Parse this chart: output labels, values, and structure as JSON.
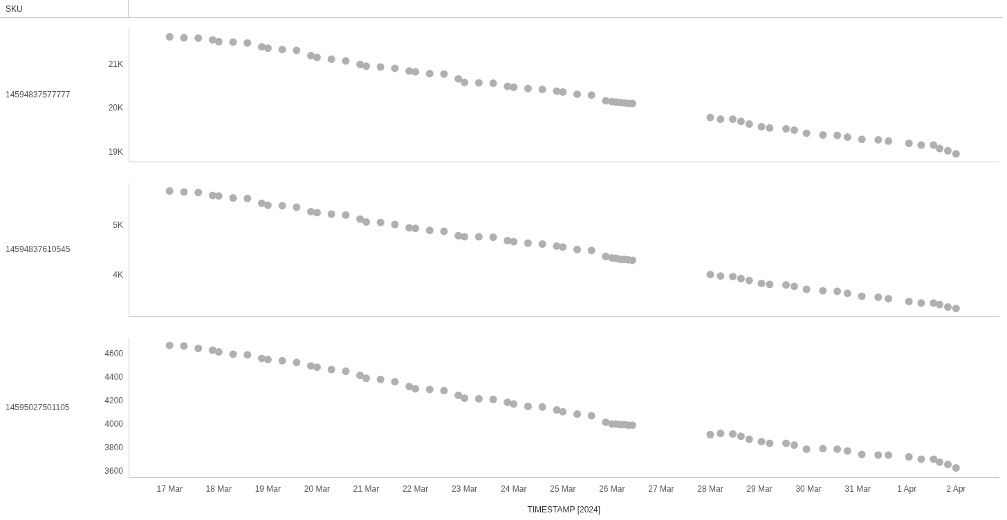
{
  "chart_data": [
    {
      "type": "scatter",
      "annotations": [
        "SKU"
      ],
      "ylabel": "14594837577777",
      "x": [
        "2024-03-17T00:00",
        "2024-03-17T07:00",
        "2024-03-17T14:00",
        "2024-03-17T21:00",
        "2024-03-18T00:00",
        "2024-03-18T07:00",
        "2024-03-18T14:00",
        "2024-03-18T21:00",
        "2024-03-19T00:00",
        "2024-03-19T07:00",
        "2024-03-19T14:00",
        "2024-03-19T21:00",
        "2024-03-20T00:00",
        "2024-03-20T07:00",
        "2024-03-20T14:00",
        "2024-03-20T21:00",
        "2024-03-21T00:00",
        "2024-03-21T07:00",
        "2024-03-21T14:00",
        "2024-03-21T21:00",
        "2024-03-22T00:00",
        "2024-03-22T07:00",
        "2024-03-22T14:00",
        "2024-03-22T21:00",
        "2024-03-23T00:00",
        "2024-03-23T07:00",
        "2024-03-23T14:00",
        "2024-03-23T21:00",
        "2024-03-24T00:00",
        "2024-03-24T07:00",
        "2024-03-24T14:00",
        "2024-03-24T21:00",
        "2024-03-25T00:00",
        "2024-03-25T07:00",
        "2024-03-25T14:00",
        "2024-03-25T21:00",
        "2024-03-26T00:00",
        "2024-03-26T02:00",
        "2024-03-26T04:00",
        "2024-03-26T06:00",
        "2024-03-26T08:00",
        "2024-03-26T10:00",
        "2024-03-28T00:00",
        "2024-03-28T05:00",
        "2024-03-28T11:00",
        "2024-03-28T15:00",
        "2024-03-28T19:00",
        "2024-03-29T01:00",
        "2024-03-29T05:00",
        "2024-03-29T13:00",
        "2024-03-29T17:00",
        "2024-03-29T23:00",
        "2024-03-30T07:00",
        "2024-03-30T14:00",
        "2024-03-30T19:00",
        "2024-03-31T02:00",
        "2024-03-31T10:00",
        "2024-03-31T15:00",
        "2024-04-01T01:00",
        "2024-04-01T07:00",
        "2024-04-01T13:00",
        "2024-04-01T16:00",
        "2024-04-01T20:00",
        "2024-04-02T00:00"
      ],
      "values": [
        21630,
        21610,
        21600,
        21560,
        21520,
        21510,
        21490,
        21400,
        21370,
        21340,
        21320,
        21200,
        21160,
        21120,
        21080,
        21000,
        20960,
        20940,
        20910,
        20850,
        20830,
        20790,
        20780,
        20670,
        20590,
        20580,
        20570,
        20500,
        20480,
        20450,
        20430,
        20390,
        20370,
        20320,
        20300,
        20170,
        20150,
        20140,
        20130,
        20120,
        20110,
        20110,
        19790,
        19750,
        19750,
        19700,
        19640,
        19580,
        19550,
        19530,
        19500,
        19430,
        19390,
        19380,
        19340,
        19290,
        19280,
        19250,
        19200,
        19160,
        19160,
        19080,
        19030,
        18960
      ],
      "color": "#b0b0b0",
      "marker": "circle",
      "xlim": [
        "2024-03-16T04:00",
        "2024-04-02T21:00"
      ],
      "ylim": [
        18770,
        21820
      ],
      "yticks": [
        {
          "value": 19000,
          "label": "19K"
        },
        {
          "value": 20000,
          "label": "20K"
        },
        {
          "value": 21000,
          "label": "21K"
        }
      ],
      "tick_labels": "y"
    },
    {
      "type": "scatter",
      "ylabel": "14594837610545",
      "x": [
        "2024-03-17T00:00",
        "2024-03-17T07:00",
        "2024-03-17T14:00",
        "2024-03-17T21:00",
        "2024-03-18T00:00",
        "2024-03-18T07:00",
        "2024-03-18T14:00",
        "2024-03-18T21:00",
        "2024-03-19T00:00",
        "2024-03-19T07:00",
        "2024-03-19T14:00",
        "2024-03-19T21:00",
        "2024-03-20T00:00",
        "2024-03-20T07:00",
        "2024-03-20T14:00",
        "2024-03-20T21:00",
        "2024-03-21T00:00",
        "2024-03-21T07:00",
        "2024-03-21T14:00",
        "2024-03-21T21:00",
        "2024-03-22T00:00",
        "2024-03-22T07:00",
        "2024-03-22T14:00",
        "2024-03-22T21:00",
        "2024-03-23T00:00",
        "2024-03-23T07:00",
        "2024-03-23T14:00",
        "2024-03-23T21:00",
        "2024-03-24T00:00",
        "2024-03-24T07:00",
        "2024-03-24T14:00",
        "2024-03-24T21:00",
        "2024-03-25T00:00",
        "2024-03-25T07:00",
        "2024-03-25T14:00",
        "2024-03-25T21:00",
        "2024-03-26T00:00",
        "2024-03-26T02:00",
        "2024-03-26T04:00",
        "2024-03-26T06:00",
        "2024-03-26T08:00",
        "2024-03-26T10:00",
        "2024-03-28T00:00",
        "2024-03-28T05:00",
        "2024-03-28T11:00",
        "2024-03-28T15:00",
        "2024-03-28T19:00",
        "2024-03-29T01:00",
        "2024-03-29T05:00",
        "2024-03-29T13:00",
        "2024-03-29T17:00",
        "2024-03-29T23:00",
        "2024-03-30T07:00",
        "2024-03-30T14:00",
        "2024-03-30T19:00",
        "2024-03-31T02:00",
        "2024-03-31T10:00",
        "2024-03-31T15:00",
        "2024-04-01T01:00",
        "2024-04-01T07:00",
        "2024-04-01T13:00",
        "2024-04-01T16:00",
        "2024-04-01T20:00",
        "2024-04-02T00:00"
      ],
      "values": [
        5710,
        5690,
        5680,
        5620,
        5610,
        5570,
        5560,
        5460,
        5420,
        5410,
        5380,
        5290,
        5270,
        5240,
        5220,
        5140,
        5080,
        5070,
        5030,
        4960,
        4950,
        4910,
        4890,
        4800,
        4780,
        4780,
        4770,
        4700,
        4680,
        4650,
        4630,
        4590,
        4570,
        4520,
        4500,
        4380,
        4350,
        4340,
        4320,
        4320,
        4310,
        4300,
        4010,
        3980,
        3970,
        3930,
        3890,
        3830,
        3810,
        3800,
        3770,
        3710,
        3680,
        3670,
        3630,
        3570,
        3550,
        3520,
        3460,
        3430,
        3430,
        3400,
        3350,
        3320
      ],
      "color": "#b0b0b0",
      "marker": "circle",
      "xlim": [
        "2024-03-16T04:00",
        "2024-04-02T21:00"
      ],
      "ylim": [
        3150,
        5870
      ],
      "yticks": [
        {
          "value": 4000,
          "label": "4K"
        },
        {
          "value": 5000,
          "label": "5K"
        }
      ],
      "tick_labels": "y"
    },
    {
      "type": "scatter",
      "ylabel": "14595027501105",
      "xlabel": "TIMESTAMP [2024]",
      "x": [
        "2024-03-17T00:00",
        "2024-03-17T07:00",
        "2024-03-17T14:00",
        "2024-03-17T21:00",
        "2024-03-18T00:00",
        "2024-03-18T07:00",
        "2024-03-18T14:00",
        "2024-03-18T21:00",
        "2024-03-19T00:00",
        "2024-03-19T07:00",
        "2024-03-19T14:00",
        "2024-03-19T21:00",
        "2024-03-20T00:00",
        "2024-03-20T07:00",
        "2024-03-20T14:00",
        "2024-03-20T21:00",
        "2024-03-21T00:00",
        "2024-03-21T07:00",
        "2024-03-21T14:00",
        "2024-03-21T21:00",
        "2024-03-22T00:00",
        "2024-03-22T07:00",
        "2024-03-22T14:00",
        "2024-03-22T21:00",
        "2024-03-23T00:00",
        "2024-03-23T07:00",
        "2024-03-23T14:00",
        "2024-03-23T21:00",
        "2024-03-24T00:00",
        "2024-03-24T07:00",
        "2024-03-24T14:00",
        "2024-03-24T21:00",
        "2024-03-25T00:00",
        "2024-03-25T07:00",
        "2024-03-25T14:00",
        "2024-03-25T21:00",
        "2024-03-26T00:00",
        "2024-03-26T02:00",
        "2024-03-26T04:00",
        "2024-03-26T06:00",
        "2024-03-26T08:00",
        "2024-03-26T10:00",
        "2024-03-28T00:00",
        "2024-03-28T05:00",
        "2024-03-28T11:00",
        "2024-03-28T15:00",
        "2024-03-28T19:00",
        "2024-03-29T01:00",
        "2024-03-29T05:00",
        "2024-03-29T13:00",
        "2024-03-29T17:00",
        "2024-03-29T23:00",
        "2024-03-30T07:00",
        "2024-03-30T14:00",
        "2024-03-30T19:00",
        "2024-03-31T02:00",
        "2024-03-31T10:00",
        "2024-03-31T15:00",
        "2024-04-01T01:00",
        "2024-04-01T07:00",
        "2024-04-01T13:00",
        "2024-04-01T16:00",
        "2024-04-01T20:00",
        "2024-04-02T00:00"
      ],
      "values": [
        4675,
        4670,
        4650,
        4635,
        4620,
        4600,
        4595,
        4565,
        4555,
        4545,
        4530,
        4500,
        4490,
        4470,
        4455,
        4420,
        4395,
        4385,
        4365,
        4325,
        4305,
        4300,
        4290,
        4250,
        4225,
        4220,
        4215,
        4190,
        4175,
        4155,
        4150,
        4125,
        4110,
        4090,
        4075,
        4020,
        4005,
        4005,
        4000,
        4000,
        3995,
        3995,
        3915,
        3925,
        3920,
        3900,
        3875,
        3855,
        3840,
        3840,
        3825,
        3790,
        3795,
        3790,
        3775,
        3745,
        3740,
        3740,
        3725,
        3705,
        3705,
        3680,
        3660,
        3630
      ],
      "color": "#b0b0b0",
      "marker": "circle",
      "xlim": [
        "2024-03-16T04:00",
        "2024-04-02T21:00"
      ],
      "xticks": [
        {
          "value": "2024-03-17",
          "label": "17 Mar"
        },
        {
          "value": "2024-03-18",
          "label": "18 Mar"
        },
        {
          "value": "2024-03-19",
          "label": "19 Mar"
        },
        {
          "value": "2024-03-20",
          "label": "20 Mar"
        },
        {
          "value": "2024-03-21",
          "label": "21 Mar"
        },
        {
          "value": "2024-03-22",
          "label": "22 Mar"
        },
        {
          "value": "2024-03-23",
          "label": "23 Mar"
        },
        {
          "value": "2024-03-24",
          "label": "24 Mar"
        },
        {
          "value": "2024-03-25",
          "label": "25 Mar"
        },
        {
          "value": "2024-03-26",
          "label": "26 Mar"
        },
        {
          "value": "2024-03-27",
          "label": "27 Mar"
        },
        {
          "value": "2024-03-28",
          "label": "28 Mar"
        },
        {
          "value": "2024-03-29",
          "label": "29 Mar"
        },
        {
          "value": "2024-03-30",
          "label": "30 Mar"
        },
        {
          "value": "2024-03-31",
          "label": "31 Mar"
        },
        {
          "value": "2024-04-01",
          "label": "1 Apr"
        },
        {
          "value": "2024-04-02",
          "label": "2 Apr"
        }
      ],
      "ylim": [
        3550,
        4740
      ],
      "yticks": [
        3600,
        3800,
        4000,
        4200,
        4400,
        4600
      ]
    }
  ]
}
